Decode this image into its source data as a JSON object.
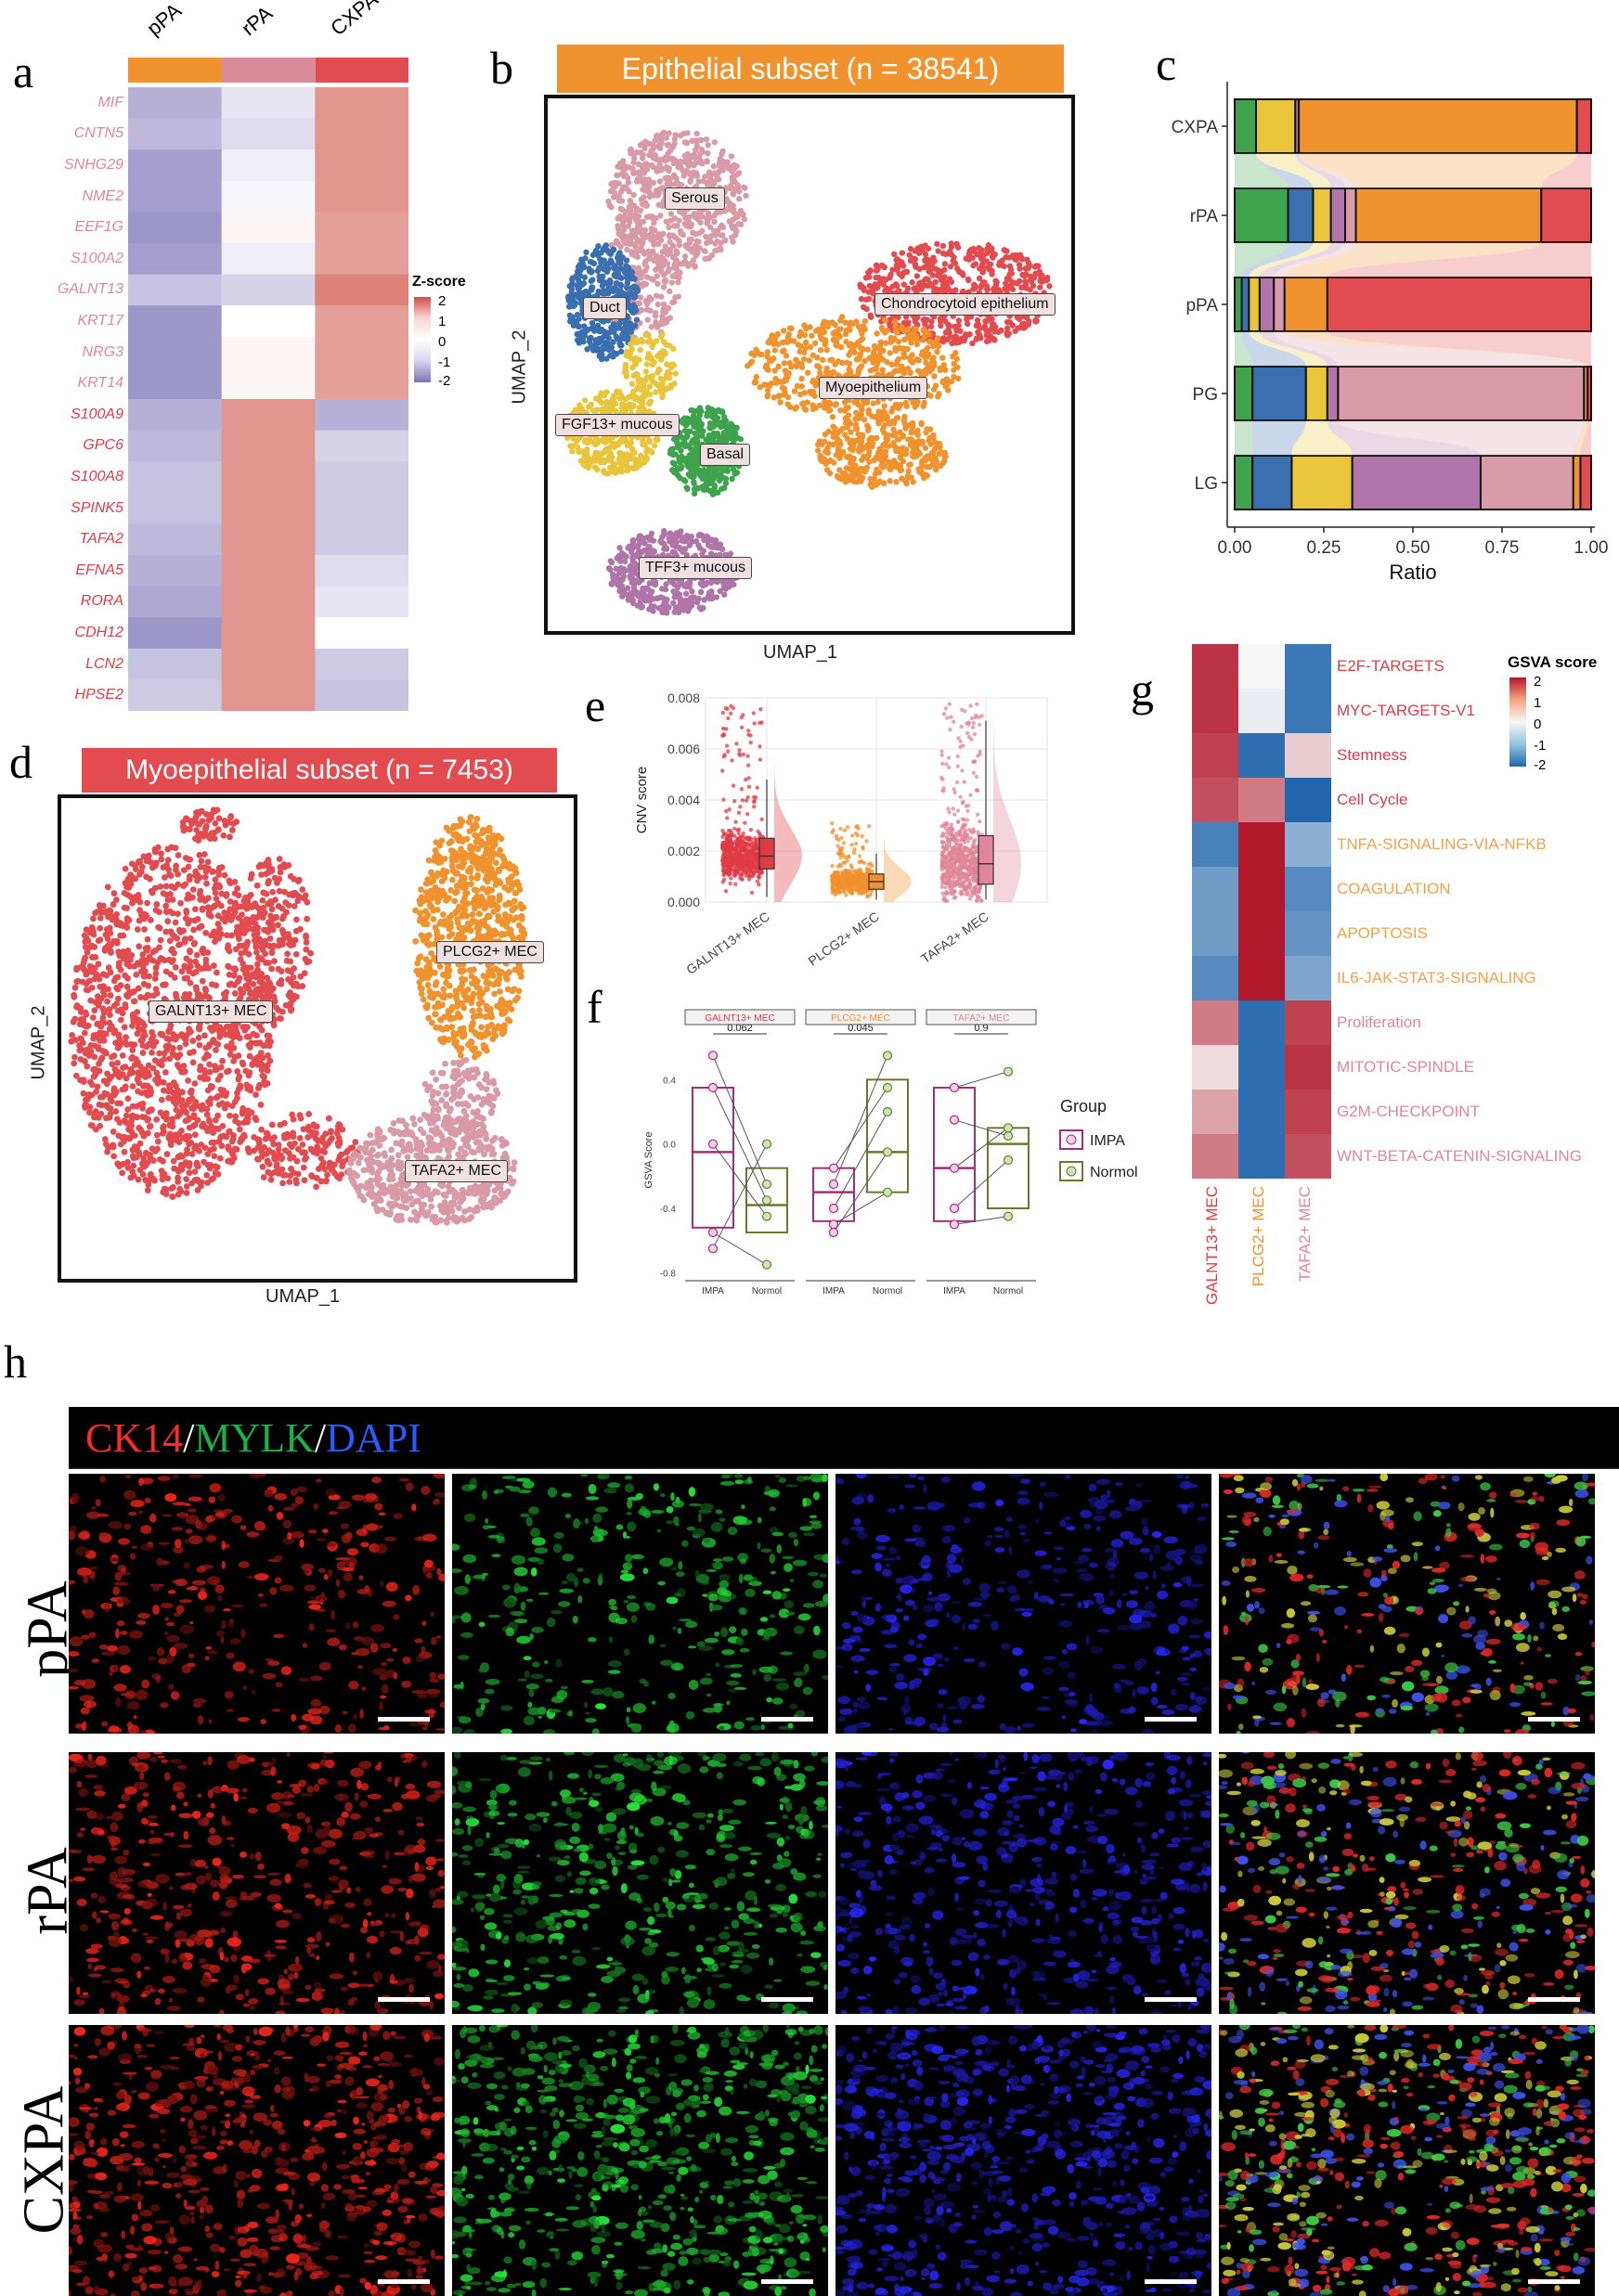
{
  "panels": {
    "a": "a",
    "b": "b",
    "c": "c",
    "d": "d",
    "e": "e",
    "f": "f",
    "g": "g",
    "h": "h"
  },
  "panel_a": {
    "columns": [
      "pPA",
      "rPA",
      "CXPA"
    ],
    "column_colors": [
      "#f0922d",
      "#d98a9b",
      "#e24b4f"
    ],
    "legend_title": "Z-score",
    "legend_ticks": [
      "2",
      "1",
      "0",
      "-1",
      "-2"
    ],
    "genes_group1_color": "#e0869a",
    "genes_group2_color": "#e03b45"
  },
  "panel_b": {
    "title": "Epithelial subset (n = 38541)",
    "xlabel": "UMAP_1",
    "ylabel": "UMAP_2",
    "clusters": [
      "Serous",
      "Duct",
      "Chondrocytoid epithelium",
      "Myoepithelium",
      "FGF13+ mucous",
      "Basal",
      "TFF3+ mucous"
    ]
  },
  "panel_d": {
    "title": "Myoepithelial subset (n = 7453)",
    "xlabel": "UMAP_1",
    "ylabel": "UMAP_2",
    "clusters": [
      "GALNT13+ MEC",
      "PLCG2+ MEC",
      "TAFA2+ MEC"
    ]
  },
  "panel_g": {
    "legend_title": "GSVA score",
    "legend_ticks": [
      "2",
      "1",
      "0",
      "-1",
      "-2"
    ],
    "columns": [
      "GALNT13+ MEC",
      "PLCG2+ MEC",
      "TAFA2+ MEC"
    ],
    "column_colors": [
      "#e03b45",
      "#f0922d",
      "#e0869a"
    ]
  },
  "panel_h": {
    "stain_ck14": "CK14",
    "stain_mylk": "MYLK",
    "stain_dapi": "DAPI",
    "slash": "/",
    "rows": [
      "pPA",
      "rPA",
      "CXPA"
    ]
  },
  "chart_data": [
    {
      "id": "a",
      "type": "heatmap",
      "columns": [
        "pPA",
        "rPA",
        "CXPA"
      ],
      "rows": [
        "MIF",
        "CNTN5",
        "SNHG29",
        "NME2",
        "EEF1G",
        "S100A2",
        "GALNT13",
        "KRT17",
        "NRG3",
        "KRT14",
        "S100A9",
        "GPC6",
        "S100A8",
        "SPINK5",
        "TAFA2",
        "EFNA5",
        "RORA",
        "CDH12",
        "LCN2",
        "HPSE2"
      ],
      "values": [
        [
          -0.9,
          -0.3,
          1.1
        ],
        [
          -0.8,
          -0.4,
          1.1
        ],
        [
          -1.1,
          -0.2,
          1.1
        ],
        [
          -1.1,
          -0.1,
          1.1
        ],
        [
          -1.2,
          0.1,
          1.0
        ],
        [
          -1.1,
          -0.2,
          1.0
        ],
        [
          -0.7,
          -0.5,
          1.3
        ],
        [
          -1.2,
          0.0,
          1.0
        ],
        [
          -1.2,
          0.1,
          1.0
        ],
        [
          -1.2,
          0.1,
          1.0
        ],
        [
          -0.9,
          1.1,
          -0.9
        ],
        [
          -0.8,
          1.1,
          -0.5
        ],
        [
          -0.7,
          1.1,
          -0.6
        ],
        [
          -0.7,
          1.1,
          -0.6
        ],
        [
          -0.8,
          1.1,
          -0.6
        ],
        [
          -0.9,
          1.1,
          -0.4
        ],
        [
          -1.0,
          1.1,
          -0.3
        ],
        [
          -1.2,
          1.1,
          0.0
        ],
        [
          -0.7,
          1.1,
          -0.6
        ],
        [
          -0.6,
          1.1,
          -0.7
        ]
      ],
      "legend_title": "Z-score",
      "range": [
        -2,
        2
      ]
    },
    {
      "id": "c",
      "type": "bar",
      "orientation": "horizontal-stacked",
      "categories": [
        "CXPA",
        "rPA",
        "pPA",
        "PG",
        "LG"
      ],
      "xlabel": "Ratio",
      "xticks": [
        "0.00",
        "0.25",
        "0.50",
        "0.75",
        "1.00"
      ],
      "xlim": [
        0,
        1
      ],
      "series": [
        {
          "color": "#3fa34d",
          "values": [
            0.06,
            0.15,
            0.02,
            0.05,
            0.05
          ]
        },
        {
          "color": "#3a6fb0",
          "values": [
            0.0,
            0.07,
            0.02,
            0.15,
            0.11
          ]
        },
        {
          "color": "#e8c53a",
          "values": [
            0.11,
            0.05,
            0.03,
            0.06,
            0.17
          ]
        },
        {
          "color": "#b075a8",
          "values": [
            0.01,
            0.04,
            0.04,
            0.03,
            0.36
          ]
        },
        {
          "color": "#d99aa8",
          "values": [
            0.0,
            0.03,
            0.03,
            0.69,
            0.26
          ]
        },
        {
          "color": "#f0922d",
          "values": [
            0.78,
            0.52,
            0.12,
            0.01,
            0.02
          ]
        },
        {
          "color": "#e24b4f",
          "values": [
            0.04,
            0.14,
            0.74,
            0.01,
            0.03
          ]
        }
      ]
    },
    {
      "id": "e",
      "type": "scatter",
      "ylabel": "CNV score",
      "categories": [
        "GALNT13+ MEC",
        "PLCG2+ MEC",
        "TAFA2+ MEC"
      ],
      "yticks": [
        "0.000",
        "0.002",
        "0.004",
        "0.006",
        "0.008"
      ],
      "ylim": [
        0,
        0.008
      ],
      "colors": [
        "#e03b45",
        "#f0922d",
        "#e0869a"
      ],
      "medians": [
        0.0018,
        0.0008,
        0.0015
      ],
      "q1": [
        0.0013,
        0.0005,
        0.0007
      ],
      "q3": [
        0.0025,
        0.0011,
        0.0026
      ],
      "whisker_low": [
        0.0002,
        0.0001,
        0.0001
      ],
      "whisker_high": [
        0.0048,
        0.0019,
        0.0071
      ],
      "max": [
        0.0078,
        0.0031,
        0.0078
      ]
    },
    {
      "id": "f",
      "type": "scatter",
      "ylabel": "GSVA Score",
      "yticks": [
        "-0.8",
        "-0.4",
        "0.0",
        "0.4"
      ],
      "ylim": [
        -0.85,
        0.65
      ],
      "legend_title": "Group",
      "groups": [
        "IMPA",
        "Normol"
      ],
      "group_colors": [
        "#a82a7a",
        "#6b7a2a"
      ],
      "facets": [
        {
          "name": "GALNT13+ MEC",
          "color": "#e03b45",
          "pvalue": "0.062",
          "IMPA": [
            0.55,
            0.35,
            0.0,
            -0.55,
            -0.65
          ],
          "Normol": [
            -0.25,
            -0.35,
            -0.45,
            -0.75,
            0.0
          ],
          "IMPA_box": [
            -0.52,
            -0.05,
            0.35
          ],
          "Normol_box": [
            -0.55,
            -0.38,
            -0.15
          ]
        },
        {
          "name": "PLCG2+ MEC",
          "color": "#f0922d",
          "pvalue": "0.045",
          "IMPA": [
            -0.15,
            -0.25,
            -0.4,
            -0.5,
            -0.55
          ],
          "Normol": [
            0.35,
            0.55,
            0.2,
            -0.3,
            -0.05
          ],
          "IMPA_box": [
            -0.48,
            -0.3,
            -0.15
          ],
          "Normol_box": [
            -0.3,
            -0.05,
            0.4
          ]
        },
        {
          "name": "TAFA2+ MEC",
          "color": "#e0869a",
          "pvalue": "0.9",
          "IMPA": [
            0.35,
            0.15,
            -0.15,
            -0.4,
            -0.5
          ],
          "Normol": [
            0.45,
            0.05,
            0.1,
            -0.1,
            -0.45
          ],
          "IMPA_box": [
            -0.48,
            -0.15,
            0.35
          ],
          "Normol_box": [
            -0.4,
            0.0,
            0.1
          ]
        }
      ],
      "xcat": [
        "IMPA",
        "Normol"
      ]
    },
    {
      "id": "g",
      "type": "heatmap",
      "legend_title": "GSVA score",
      "range": [
        -2,
        2
      ],
      "columns": [
        "GALNT13+ MEC",
        "PLCG2+ MEC",
        "TAFA2+ MEC"
      ],
      "rows": [
        "E2F-TARGETS",
        "MYC-TARGETS-V1",
        "Stemness",
        "Cell Cycle",
        "TNFA-SIGNALING-VIA-NFKB",
        "COAGULATION",
        "APOPTOSIS",
        "IL6-JAK-STAT3-SIGNALING",
        "Proliferation",
        "MITOTIC-SPINDLE",
        "G2M-CHECKPOINT",
        "WNT-BETA-CATENIN-SIGNALING"
      ],
      "row_colors": [
        "#e03b45",
        "#e03b45",
        "#e03b45",
        "#e03b45",
        "#f0a24a",
        "#f0a24a",
        "#f0a24a",
        "#f0a24a",
        "#e0869a",
        "#e0869a",
        "#e0869a",
        "#e0869a"
      ],
      "values": [
        [
          1.4,
          0.0,
          -1.4
        ],
        [
          1.4,
          -0.1,
          -1.4
        ],
        [
          1.3,
          -1.5,
          0.3
        ],
        [
          1.2,
          0.9,
          -1.6
        ],
        [
          -1.3,
          1.6,
          -0.8
        ],
        [
          -1.0,
          1.6,
          -1.2
        ],
        [
          -1.0,
          1.6,
          -1.1
        ],
        [
          -1.2,
          1.6,
          -0.9
        ],
        [
          0.9,
          -1.5,
          1.3
        ],
        [
          0.2,
          -1.5,
          1.4
        ],
        [
          0.6,
          -1.5,
          1.3
        ],
        [
          0.9,
          -1.5,
          1.2
        ]
      ]
    }
  ]
}
